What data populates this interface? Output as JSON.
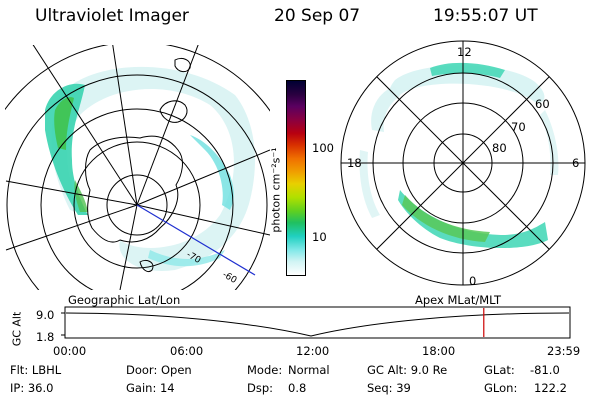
{
  "header": {
    "instrument": "Ultraviolet Imager",
    "date": "20 Sep 07",
    "time": "19:55:07 UT"
  },
  "colorbar": {
    "label": "photon cm⁻²s⁻¹",
    "ticks": [
      "100",
      "10"
    ],
    "colors": [
      "#000033",
      "#2a0040",
      "#5a0060",
      "#8a0040",
      "#b80010",
      "#d83000",
      "#f07000",
      "#f0a000",
      "#e8d000",
      "#b0e000",
      "#60d020",
      "#20c060",
      "#20d0c0",
      "#80e8e8",
      "#d0f4f4",
      "#ffffff"
    ]
  },
  "left_panel": {
    "caption": "Geographic Lat/Lon",
    "ring_labels": [
      "-70",
      "-60"
    ]
  },
  "right_panel": {
    "caption": "Apex MLat/MLT",
    "mlt_labels": {
      "top": "12",
      "left": "18",
      "right": "6",
      "bottom": "0"
    },
    "lat_labels": [
      "60",
      "70",
      "80"
    ]
  },
  "timeline": {
    "axis_label": "GC Alt",
    "y_ticks": [
      "9.0",
      "1.8"
    ],
    "x_ticks": [
      "00:00",
      "06:00",
      "12:00",
      "18:00",
      "23:59"
    ],
    "current_marker_hours": 19.92,
    "marker_color": "#cc0000"
  },
  "info": {
    "flt": "Flt: LBHL",
    "ip": "IP: 36.0",
    "door": "Door: Open",
    "gain": "Gain: 14",
    "mode_label": "Mode:",
    "mode_value": "Normal",
    "dsp_label": "Dsp:",
    "dsp_value": "0.8",
    "gcalt": "GC Alt: 9.0 Re",
    "seq": "Seq: 39",
    "glat_label": "GLat:",
    "glat_value": "-81.0",
    "glon_label": "GLon:",
    "glon_value": "122.2"
  }
}
